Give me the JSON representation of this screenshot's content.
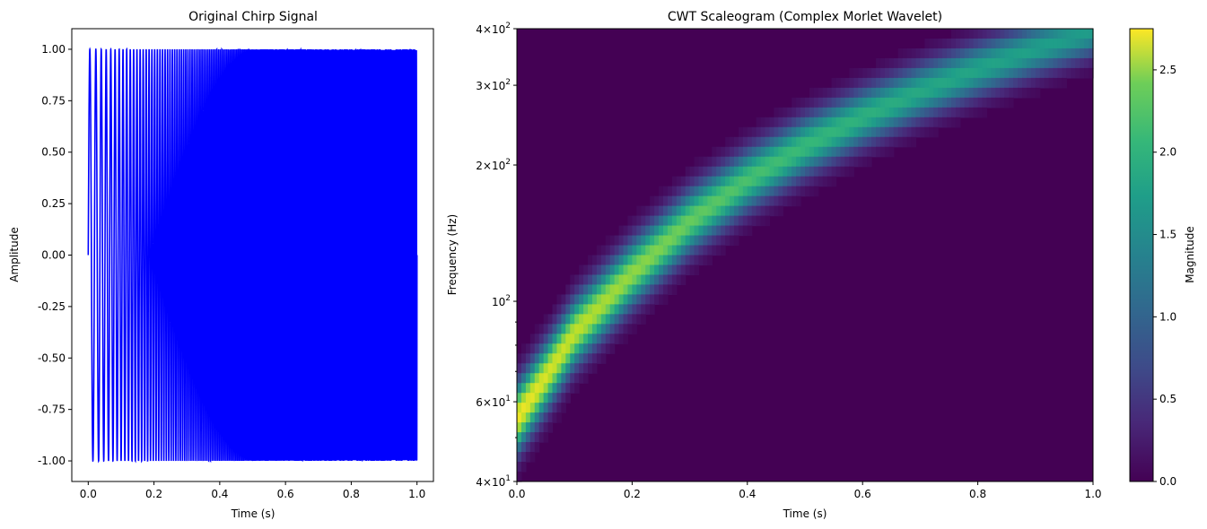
{
  "chart_data": [
    {
      "type": "line",
      "title": "Original Chirp Signal",
      "xlabel": "Time (s)",
      "ylabel": "Amplitude",
      "xlim": [
        -0.05,
        1.05
      ],
      "ylim": [
        -1.1,
        1.1
      ],
      "x_ticks": [
        "0.0",
        "0.2",
        "0.4",
        "0.6",
        "0.8",
        "1.0"
      ],
      "y_ticks": [
        "1.00",
        "0.75",
        "0.50",
        "0.25",
        "0.00",
        "-0.25",
        "-0.50",
        "-0.75",
        "-1.00"
      ],
      "line_color": "#0000ff",
      "signal": {
        "kind": "linear chirp",
        "duration_s": 1.0,
        "f_start_hz": 50,
        "f_end_hz": 400,
        "amplitude_range": [
          -1.0,
          1.0
        ]
      },
      "grid": false
    },
    {
      "type": "heatmap",
      "title": "CWT Scaleogram (Complex Morlet Wavelet)",
      "xlabel": "Time (s)",
      "ylabel": "Frequency (Hz)",
      "xlim": [
        0.0,
        1.0
      ],
      "ylim": [
        40,
        400
      ],
      "y_scale": "log",
      "x_ticks": [
        "0.0",
        "0.2",
        "0.4",
        "0.6",
        "0.8",
        "1.0"
      ],
      "y_ticks": [
        {
          "value": 400,
          "base": "4",
          "exp": "2"
        },
        {
          "value": 300,
          "base": "3",
          "exp": "2"
        },
        {
          "value": 200,
          "base": "2",
          "exp": "2"
        },
        {
          "value": 100,
          "base": "10",
          "exp": "2",
          "plain": true
        },
        {
          "value": 60,
          "base": "6",
          "exp": "1"
        },
        {
          "value": 40,
          "base": "4",
          "exp": "1"
        }
      ],
      "colormap": "viridis",
      "ridge": {
        "points": [
          {
            "t": 0.0,
            "f_hz": 55,
            "magnitude": 2.7
          },
          {
            "t": 0.05,
            "f_hz": 68,
            "magnitude": 2.6
          },
          {
            "t": 0.1,
            "f_hz": 85,
            "magnitude": 2.5
          },
          {
            "t": 0.2,
            "f_hz": 115,
            "magnitude": 2.3
          },
          {
            "t": 0.3,
            "f_hz": 150,
            "magnitude": 2.1
          },
          {
            "t": 0.4,
            "f_hz": 185,
            "magnitude": 1.95
          },
          {
            "t": 0.5,
            "f_hz": 220,
            "magnitude": 1.85
          },
          {
            "t": 0.6,
            "f_hz": 255,
            "magnitude": 1.75
          },
          {
            "t": 0.7,
            "f_hz": 290,
            "magnitude": 1.65
          },
          {
            "t": 0.8,
            "f_hz": 325,
            "magnitude": 1.6
          },
          {
            "t": 0.9,
            "f_hz": 360,
            "magnitude": 1.55
          },
          {
            "t": 1.0,
            "f_hz": 395,
            "magnitude": 1.5
          }
        ]
      },
      "colorbar": {
        "label": "Magnitude",
        "range": [
          0.0,
          2.75
        ],
        "ticks": [
          "0.0",
          "0.5",
          "1.0",
          "1.5",
          "2.0",
          "2.5"
        ]
      }
    }
  ]
}
